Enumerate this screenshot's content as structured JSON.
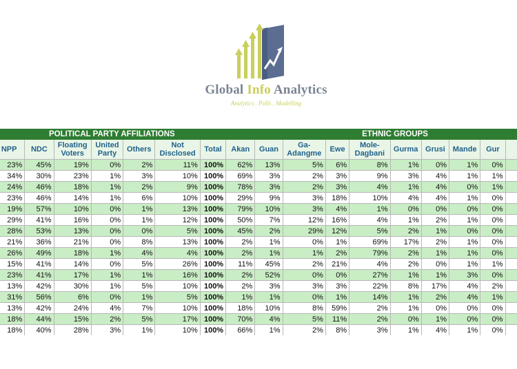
{
  "brand": {
    "title_part1": "Global",
    "title_part2": "Info",
    "title_part3": "Analytics",
    "tagline": "Analytics . Polls . Modelling",
    "colors": {
      "bar_green": "#c9cf5c",
      "bar_blue": "#5b7bb7",
      "dark": "#4b5568"
    }
  },
  "table": {
    "group_headers": {
      "party": "POLITICAL PARTY AFFILIATIONS",
      "ethnic": "ETHNIC GROUPS"
    },
    "columns": [
      "NPP",
      "NDC",
      "Floating Voters",
      "United Party",
      "Others",
      "Not Disclosed",
      "Total",
      "Akan",
      "Guan",
      "Ga-Adangme",
      "Ewe",
      "Mole-Dagbani",
      "Gurma",
      "Grusi",
      "Mande",
      "Gur",
      ""
    ],
    "rows": [
      [
        "23%",
        "45%",
        "19%",
        "0%",
        "2%",
        "11%",
        "100%",
        "62%",
        "13%",
        "5%",
        "6%",
        "8%",
        "1%",
        "0%",
        "1%",
        "0%"
      ],
      [
        "34%",
        "30%",
        "23%",
        "1%",
        "3%",
        "10%",
        "100%",
        "69%",
        "3%",
        "2%",
        "3%",
        "9%",
        "3%",
        "4%",
        "1%",
        "1%"
      ],
      [
        "24%",
        "46%",
        "18%",
        "1%",
        "2%",
        "9%",
        "100%",
        "78%",
        "3%",
        "2%",
        "3%",
        "4%",
        "1%",
        "4%",
        "0%",
        "1%"
      ],
      [
        "23%",
        "46%",
        "14%",
        "1%",
        "6%",
        "10%",
        "100%",
        "29%",
        "9%",
        "3%",
        "18%",
        "10%",
        "4%",
        "4%",
        "1%",
        "0%"
      ],
      [
        "19%",
        "57%",
        "10%",
        "0%",
        "1%",
        "13%",
        "100%",
        "79%",
        "10%",
        "3%",
        "4%",
        "1%",
        "0%",
        "0%",
        "0%",
        "0%"
      ],
      [
        "29%",
        "41%",
        "16%",
        "0%",
        "1%",
        "12%",
        "100%",
        "50%",
        "7%",
        "12%",
        "16%",
        "4%",
        "1%",
        "2%",
        "1%",
        "0%"
      ],
      [
        "28%",
        "53%",
        "13%",
        "0%",
        "0%",
        "5%",
        "100%",
        "45%",
        "2%",
        "29%",
        "12%",
        "5%",
        "2%",
        "1%",
        "0%",
        "0%"
      ],
      [
        "21%",
        "36%",
        "21%",
        "0%",
        "8%",
        "13%",
        "100%",
        "2%",
        "1%",
        "0%",
        "1%",
        "69%",
        "17%",
        "2%",
        "1%",
        "0%"
      ],
      [
        "26%",
        "49%",
        "18%",
        "1%",
        "4%",
        "4%",
        "100%",
        "2%",
        "1%",
        "1%",
        "2%",
        "79%",
        "2%",
        "1%",
        "1%",
        "0%"
      ],
      [
        "15%",
        "41%",
        "14%",
        "0%",
        "5%",
        "26%",
        "100%",
        "11%",
        "45%",
        "2%",
        "21%",
        "4%",
        "2%",
        "0%",
        "1%",
        "1%"
      ],
      [
        "23%",
        "41%",
        "17%",
        "1%",
        "1%",
        "16%",
        "100%",
        "2%",
        "52%",
        "0%",
        "0%",
        "27%",
        "1%",
        "1%",
        "3%",
        "0%"
      ],
      [
        "13%",
        "42%",
        "30%",
        "1%",
        "5%",
        "10%",
        "100%",
        "2%",
        "3%",
        "3%",
        "3%",
        "22%",
        "8%",
        "17%",
        "4%",
        "2%"
      ],
      [
        "31%",
        "56%",
        "6%",
        "0%",
        "1%",
        "5%",
        "100%",
        "1%",
        "1%",
        "0%",
        "1%",
        "14%",
        "1%",
        "2%",
        "4%",
        "1%"
      ],
      [
        "13%",
        "42%",
        "24%",
        "4%",
        "7%",
        "10%",
        "100%",
        "18%",
        "10%",
        "8%",
        "59%",
        "2%",
        "1%",
        "0%",
        "0%",
        "0%"
      ],
      [
        "18%",
        "44%",
        "15%",
        "2%",
        "5%",
        "17%",
        "100%",
        "70%",
        "4%",
        "5%",
        "11%",
        "2%",
        "0%",
        "1%",
        "0%",
        "0%"
      ],
      [
        "18%",
        "40%",
        "28%",
        "3%",
        "1%",
        "10%",
        "100%",
        "66%",
        "1%",
        "2%",
        "8%",
        "3%",
        "1%",
        "4%",
        "1%",
        "0%"
      ]
    ]
  }
}
